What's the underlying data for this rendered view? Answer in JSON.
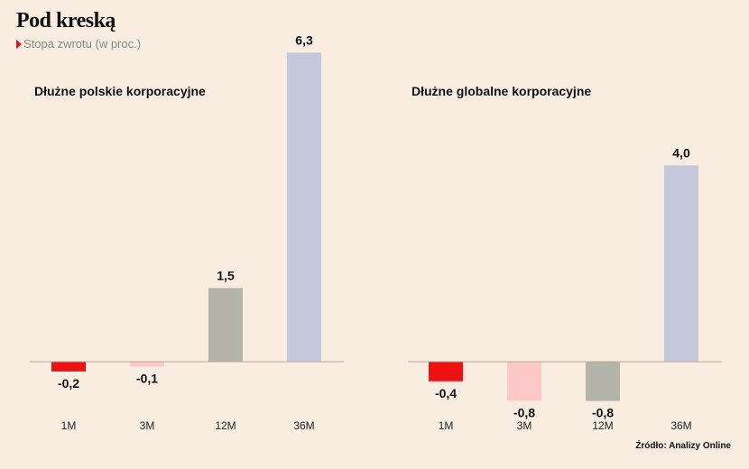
{
  "header": {
    "title": "Pod kreską",
    "subtitle": "Stopa zwrotu (w proc.)"
  },
  "source": "Źródło: Analizy Online",
  "chart_data": [
    {
      "type": "bar",
      "title": "Dłużne polskie korporacyjne",
      "categories": [
        "1M",
        "3M",
        "12M",
        "36M"
      ],
      "values": [
        -0.2,
        -0.1,
        1.5,
        6.3
      ],
      "labels": [
        "-0,2",
        "-0,1",
        "1,5",
        "6,3"
      ],
      "colors": [
        "#ee1111",
        "#ffc8c8",
        "#b5b4a9",
        "#c3c9da"
      ]
    },
    {
      "type": "bar",
      "title": "Dłużne globalne korporacyjne",
      "categories": [
        "1M",
        "3M",
        "12M",
        "36M"
      ],
      "values": [
        -0.4,
        -0.8,
        -0.8,
        4.0
      ],
      "labels": [
        "-0,4",
        "-0,8",
        "-0,8",
        "4,0"
      ],
      "colors": [
        "#ee1111",
        "#ffc8c8",
        "#b5b4a9",
        "#c3c9da"
      ]
    }
  ]
}
